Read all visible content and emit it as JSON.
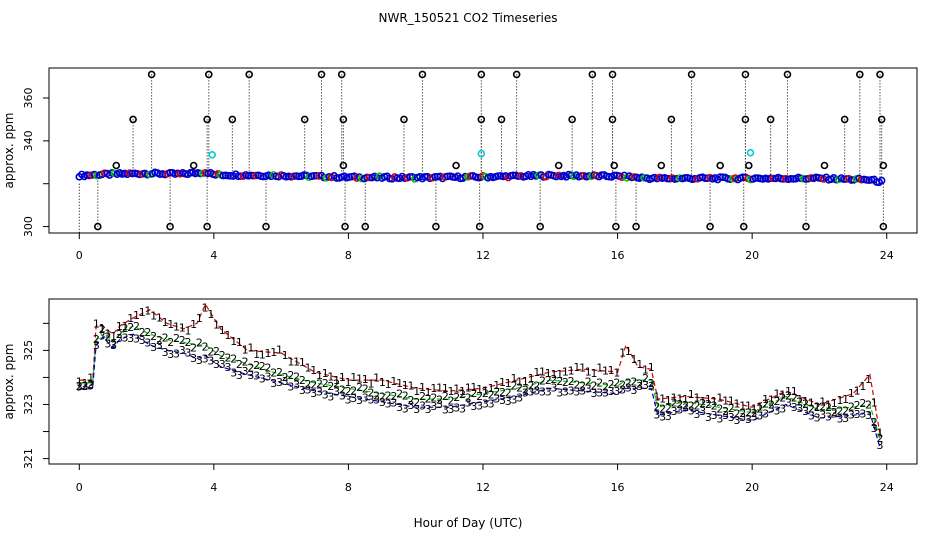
{
  "title": "NWR_150521  CO2 Timeseries",
  "xlabel": "Hour of Day (UTC)",
  "colors": {
    "frame": "#000000",
    "outlier": "#000000",
    "species_1": "#dd0000",
    "species_2": "#00cc00",
    "species_3": "#0000cc",
    "cal": "#00cccc"
  },
  "chart_data": [
    {
      "type": "scatter",
      "title": "",
      "ylabel": "approx. ppm",
      "xlabel": "",
      "xlim": [
        -0.9,
        24.9
      ],
      "ylim": [
        297,
        374
      ],
      "xticks": [
        0,
        4,
        8,
        12,
        16,
        20,
        24
      ],
      "yticks": [
        300,
        320,
        340,
        360
      ],
      "ytick_labels": [
        "300",
        "",
        "340",
        "360"
      ],
      "baseline": [
        {
          "x": 0.0,
          "y": 323.8
        },
        {
          "x": 1.0,
          "y": 324.5
        },
        {
          "x": 2.0,
          "y": 324.8
        },
        {
          "x": 3.0,
          "y": 324.5
        },
        {
          "x": 3.8,
          "y": 325.4
        },
        {
          "x": 4.0,
          "y": 324.2
        },
        {
          "x": 6.0,
          "y": 323.8
        },
        {
          "x": 8.0,
          "y": 323.0
        },
        {
          "x": 10.0,
          "y": 322.8
        },
        {
          "x": 12.0,
          "y": 323.2
        },
        {
          "x": 14.0,
          "y": 323.8
        },
        {
          "x": 16.0,
          "y": 323.5
        },
        {
          "x": 17.0,
          "y": 322.5
        },
        {
          "x": 20.0,
          "y": 322.5
        },
        {
          "x": 22.0,
          "y": 322.5
        },
        {
          "x": 23.5,
          "y": 321.8
        },
        {
          "x": 23.8,
          "y": 321.0
        }
      ],
      "outliers_high": [
        2.15,
        3.85,
        5.05,
        7.2,
        7.8,
        10.2,
        11.95,
        13.0,
        15.25,
        15.85,
        18.2,
        19.8,
        21.05,
        23.2,
        23.8
      ],
      "outliers_high_value": 371,
      "outliers_mid": [
        1.6,
        3.8,
        4.55,
        6.7,
        7.85,
        9.65,
        11.95,
        12.55,
        14.65,
        15.85,
        17.6,
        19.8,
        20.55,
        22.75,
        23.85
      ],
      "outliers_mid_value": 350,
      "outliers_low": [
        0.55,
        2.7,
        3.8,
        5.55,
        7.9,
        8.5,
        10.6,
        11.9,
        13.7,
        15.95,
        16.55,
        18.75,
        19.75,
        21.6,
        23.9
      ],
      "outliers_low_value": 300,
      "outliers_minor": [
        1.1,
        3.4,
        7.85,
        11.2,
        14.25,
        15.9,
        17.3,
        19.05,
        19.9,
        22.15,
        23.9
      ],
      "outliers_minor_value": 328.5,
      "cal_points": [
        {
          "x": 3.95,
          "y": 333.5
        },
        {
          "x": 11.95,
          "y": 334
        },
        {
          "x": 19.95,
          "y": 334.5
        }
      ]
    },
    {
      "type": "line",
      "title": "",
      "ylabel": "approx. ppm",
      "xlabel": "Hour of Day (UTC)",
      "xlim": [
        -0.9,
        24.9
      ],
      "ylim": [
        320.8,
        326.9
      ],
      "xticks": [
        0,
        4,
        8,
        12,
        16,
        20,
        24
      ],
      "yticks": [
        321,
        322,
        323,
        324,
        325,
        326
      ],
      "ytick_labels": [
        "321",
        "",
        "323",
        "",
        "325",
        ""
      ],
      "series": [
        {
          "name": "1",
          "values": [
            {
              "x": 0.0,
              "y": 323.9
            },
            {
              "x": 0.4,
              "y": 323.9
            },
            {
              "x": 0.5,
              "y": 325.9
            },
            {
              "x": 0.7,
              "y": 325.9
            },
            {
              "x": 1.0,
              "y": 325.6
            },
            {
              "x": 1.2,
              "y": 325.9
            },
            {
              "x": 1.6,
              "y": 326.2
            },
            {
              "x": 2.1,
              "y": 326.5
            },
            {
              "x": 2.6,
              "y": 326.0
            },
            {
              "x": 3.1,
              "y": 325.8
            },
            {
              "x": 3.5,
              "y": 326.0
            },
            {
              "x": 3.75,
              "y": 326.7
            },
            {
              "x": 4.2,
              "y": 325.8
            },
            {
              "x": 5.0,
              "y": 325.0
            },
            {
              "x": 6.0,
              "y": 324.9
            },
            {
              "x": 7.0,
              "y": 324.2
            },
            {
              "x": 8.0,
              "y": 323.9
            },
            {
              "x": 9.0,
              "y": 323.9
            },
            {
              "x": 10.0,
              "y": 323.6
            },
            {
              "x": 11.0,
              "y": 323.5
            },
            {
              "x": 12.0,
              "y": 323.6
            },
            {
              "x": 13.0,
              "y": 323.9
            },
            {
              "x": 14.0,
              "y": 324.2
            },
            {
              "x": 15.0,
              "y": 324.3
            },
            {
              "x": 16.0,
              "y": 324.2
            },
            {
              "x": 16.25,
              "y": 325.2
            },
            {
              "x": 16.6,
              "y": 324.4
            },
            {
              "x": 17.0,
              "y": 324.3
            },
            {
              "x": 17.2,
              "y": 323.2
            },
            {
              "x": 18.0,
              "y": 323.3
            },
            {
              "x": 19.0,
              "y": 323.2
            },
            {
              "x": 20.0,
              "y": 322.9
            },
            {
              "x": 21.0,
              "y": 323.5
            },
            {
              "x": 22.0,
              "y": 323.0
            },
            {
              "x": 23.0,
              "y": 323.4
            },
            {
              "x": 23.5,
              "y": 324.1
            },
            {
              "x": 23.8,
              "y": 321.9
            }
          ]
        },
        {
          "name": "2",
          "values": [
            {
              "x": 0.0,
              "y": 323.8
            },
            {
              "x": 0.4,
              "y": 323.8
            },
            {
              "x": 0.5,
              "y": 325.4
            },
            {
              "x": 0.7,
              "y": 325.7
            },
            {
              "x": 1.0,
              "y": 325.3
            },
            {
              "x": 1.2,
              "y": 325.6
            },
            {
              "x": 1.6,
              "y": 325.9
            },
            {
              "x": 2.1,
              "y": 325.6
            },
            {
              "x": 2.6,
              "y": 325.4
            },
            {
              "x": 3.1,
              "y": 325.3
            },
            {
              "x": 3.5,
              "y": 325.2
            },
            {
              "x": 3.75,
              "y": 325.2
            },
            {
              "x": 4.2,
              "y": 324.8
            },
            {
              "x": 5.0,
              "y": 324.5
            },
            {
              "x": 6.0,
              "y": 324.1
            },
            {
              "x": 7.0,
              "y": 323.8
            },
            {
              "x": 8.0,
              "y": 323.6
            },
            {
              "x": 9.0,
              "y": 323.4
            },
            {
              "x": 10.0,
              "y": 323.2
            },
            {
              "x": 11.0,
              "y": 323.2
            },
            {
              "x": 12.0,
              "y": 323.4
            },
            {
              "x": 13.0,
              "y": 323.6
            },
            {
              "x": 14.0,
              "y": 323.9
            },
            {
              "x": 15.0,
              "y": 323.8
            },
            {
              "x": 16.0,
              "y": 323.7
            },
            {
              "x": 16.25,
              "y": 323.9
            },
            {
              "x": 16.6,
              "y": 323.9
            },
            {
              "x": 17.0,
              "y": 323.9
            },
            {
              "x": 17.2,
              "y": 322.9
            },
            {
              "x": 18.0,
              "y": 323.1
            },
            {
              "x": 19.0,
              "y": 322.9
            },
            {
              "x": 20.0,
              "y": 322.7
            },
            {
              "x": 21.0,
              "y": 323.3
            },
            {
              "x": 22.0,
              "y": 322.8
            },
            {
              "x": 23.0,
              "y": 322.9
            },
            {
              "x": 23.5,
              "y": 323.0
            },
            {
              "x": 23.8,
              "y": 321.7
            }
          ]
        },
        {
          "name": "3",
          "values": [
            {
              "x": 0.0,
              "y": 323.6
            },
            {
              "x": 0.4,
              "y": 323.6
            },
            {
              "x": 0.5,
              "y": 325.2
            },
            {
              "x": 0.7,
              "y": 325.5
            },
            {
              "x": 1.0,
              "y": 325.1
            },
            {
              "x": 1.2,
              "y": 325.4
            },
            {
              "x": 1.6,
              "y": 325.6
            },
            {
              "x": 2.1,
              "y": 325.2
            },
            {
              "x": 2.6,
              "y": 325.0
            },
            {
              "x": 3.1,
              "y": 324.9
            },
            {
              "x": 3.5,
              "y": 324.7
            },
            {
              "x": 3.75,
              "y": 324.8
            },
            {
              "x": 4.2,
              "y": 324.4
            },
            {
              "x": 5.0,
              "y": 324.1
            },
            {
              "x": 6.0,
              "y": 323.8
            },
            {
              "x": 7.0,
              "y": 323.5
            },
            {
              "x": 8.0,
              "y": 323.3
            },
            {
              "x": 9.0,
              "y": 323.1
            },
            {
              "x": 10.0,
              "y": 322.9
            },
            {
              "x": 11.0,
              "y": 322.9
            },
            {
              "x": 12.0,
              "y": 323.1
            },
            {
              "x": 13.0,
              "y": 323.3
            },
            {
              "x": 14.0,
              "y": 323.6
            },
            {
              "x": 15.0,
              "y": 323.5
            },
            {
              "x": 16.0,
              "y": 323.4
            },
            {
              "x": 16.25,
              "y": 323.6
            },
            {
              "x": 16.6,
              "y": 323.6
            },
            {
              "x": 17.0,
              "y": 323.6
            },
            {
              "x": 17.2,
              "y": 322.6
            },
            {
              "x": 18.0,
              "y": 322.8
            },
            {
              "x": 19.0,
              "y": 322.6
            },
            {
              "x": 20.0,
              "y": 322.4
            },
            {
              "x": 21.0,
              "y": 323.0
            },
            {
              "x": 22.0,
              "y": 322.5
            },
            {
              "x": 23.0,
              "y": 322.6
            },
            {
              "x": 23.5,
              "y": 322.7
            },
            {
              "x": 23.8,
              "y": 321.4
            }
          ]
        }
      ]
    }
  ]
}
